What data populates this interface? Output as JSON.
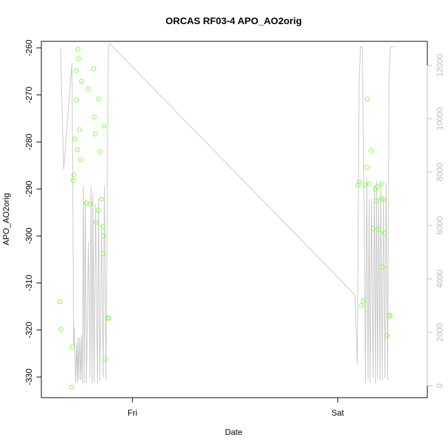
{
  "chart_data": {
    "type": "scatter",
    "title": "ORCAS RF03-4 APO_AO2orig",
    "xlabel": "Date",
    "ylabel": "APO_AO2orig",
    "x_unit": "hours since Thursday 00:00",
    "x_ticks": [
      {
        "label": "Fri",
        "value": 24
      },
      {
        "label": "Sat",
        "value": 48
      }
    ],
    "xlim": [
      13.35,
      58.48
    ],
    "ylim": [
      -334.4,
      -258.6
    ],
    "y_ticks": [
      -330,
      -320,
      -310,
      -300,
      -290,
      -280,
      -270,
      -260
    ],
    "y2_lim": [
      -450,
      12900
    ],
    "y2_ticks": [
      0,
      2000,
      4000,
      6000,
      8000,
      10000,
      12000
    ],
    "grid": false,
    "legend": "none",
    "colors": {
      "points": "#7cff3f",
      "line": "#c8c8c8",
      "right_axis": "#bdbdbd"
    },
    "series": [
      {
        "type": "scatter",
        "axis": "left",
        "x": [
          15.49,
          15.64,
          16.87,
          16.96,
          17.07,
          17.15,
          17.25,
          17.43,
          17.47,
          17.56,
          17.64,
          17.68,
          17.8,
          17.94,
          18.04,
          18.58,
          18.82,
          19.06,
          19.47,
          19.53,
          19.66,
          19.72,
          20.0,
          20.04,
          20.18,
          20.38,
          20.53,
          20.58,
          20.62,
          20.68,
          20.78,
          21.12,
          21.25
        ],
        "y": [
          -314.0,
          -319.9,
          -332.2,
          -323.6,
          -288.2,
          -287.0,
          -279.4,
          -264.8,
          -271.1,
          -281.6,
          -260.3,
          -262.3,
          -277.4,
          -283.8,
          -267.1,
          -293.0,
          -268.7,
          -293.2,
          -264.4,
          -274.7,
          -278.3,
          -297.1,
          -294.5,
          -270.9,
          -282.1,
          -292.2,
          -298.0,
          -303.8,
          -300.0,
          -276.6,
          -326.2,
          -317.5,
          -317.5
        ]
      },
      {
        "type": "scatter",
        "axis": "left",
        "x": [
          50.39,
          50.54,
          50.79,
          51.0,
          51.23,
          51.4,
          51.48,
          51.74,
          51.91,
          52.14,
          52.39,
          52.54,
          52.63,
          52.79,
          53.06,
          53.14,
          53.24,
          53.35,
          53.44,
          53.77,
          54.02,
          54.14
        ],
        "y": [
          -289.2,
          -288.5,
          -314.8,
          -313.8,
          -289.1,
          -285.4,
          -270.9,
          -288.9,
          -281.8,
          -298.4,
          -290.0,
          -292.5,
          -289.5,
          -298.6,
          -289.0,
          -292.0,
          -306.6,
          -292.3,
          -299.4,
          -321.2,
          -316.9,
          -317.0
        ]
      },
      {
        "type": "line",
        "axis": "right",
        "x": [
          15.59,
          15.96,
          16.55,
          16.93,
          17.02,
          17.12,
          17.21,
          17.34,
          17.46,
          17.55,
          17.64,
          17.73,
          17.83,
          17.94,
          18.05,
          18.15,
          18.26,
          18.36,
          18.48,
          18.62,
          18.86,
          19.04,
          19.16,
          19.29,
          19.38,
          19.52,
          19.69,
          19.91,
          20.04,
          20.18,
          20.39,
          20.57,
          20.72,
          20.9,
          21.18,
          21.39,
          50.02,
          50.29,
          50.51,
          50.66,
          50.88,
          51.09,
          51.25,
          51.4,
          51.55,
          51.68,
          51.79,
          51.96,
          52.14,
          52.29,
          52.42,
          52.54,
          52.66,
          52.79,
          52.94,
          53.04,
          53.2,
          53.36,
          53.52,
          53.66,
          53.85,
          54.0,
          54.16,
          54.37,
          54.59,
          54.74
        ],
        "y": [
          12650,
          8100,
          10500,
          12100,
          8000,
          1500,
          2200,
          100,
          1600,
          100,
          1800,
          200,
          1800,
          200,
          1900,
          100,
          7500,
          100,
          7000,
          100,
          5400,
          300,
          7500,
          100,
          7200,
          100,
          6800,
          100,
          7000,
          200,
          6000,
          300,
          7500,
          200,
          12700,
          12800,
          3400,
          800,
          11500,
          12700,
          12700,
          6500,
          100,
          7800,
          200,
          7000,
          100,
          7000,
          300,
          7500,
          100,
          7700,
          300,
          7000,
          200,
          7600,
          200,
          7000,
          300,
          7600,
          200,
          11500,
          12700,
          12700,
          12700,
          12700
        ]
      }
    ]
  }
}
